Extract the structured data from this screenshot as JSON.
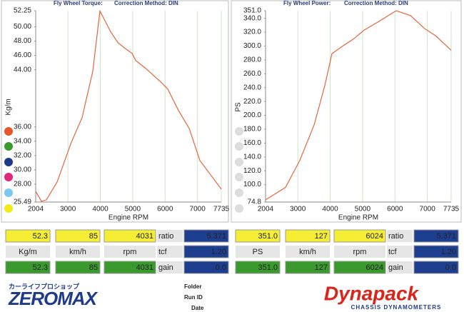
{
  "chart_data": [
    {
      "type": "line",
      "title": "Fly Wheel Torque:",
      "subtitle": "Correction Method: DIN",
      "x_label": "Engine RPM",
      "y_label": "Kg/m",
      "x": [
        2004,
        2180,
        2335,
        2665,
        3100,
        3437,
        3767,
        3988,
        4318,
        4540,
        4760,
        4980,
        5090,
        5420,
        5861,
        6082,
        6412,
        6743,
        7074,
        7405,
        7735
      ],
      "values": [
        27.0,
        25.6,
        25.8,
        28.3,
        33.8,
        37.3,
        43.8,
        52.2,
        49.3,
        47.8,
        47.0,
        46.3,
        45.3,
        44.1,
        42.3,
        41.3,
        38.3,
        35.8,
        31.3,
        29.3,
        27.3
      ],
      "color": "#e8643c",
      "xlim": [
        2004,
        7735
      ],
      "xticks": [
        2004,
        3000,
        4000,
        5000,
        6000,
        7000,
        7735
      ],
      "ylim": [
        25.49,
        52.25
      ],
      "yticks": [
        25.49,
        {
          "value": 28,
          "label": "28.00"
        },
        {
          "value": 30,
          "label": "30.00"
        },
        {
          "value": 32,
          "label": "32.00"
        },
        {
          "value": 34,
          "label": "34.00"
        },
        {
          "value": 36,
          "label": "36.00"
        },
        {
          "value": 44,
          "label": "44.00"
        },
        {
          "value": 46,
          "label": "46.00"
        },
        {
          "value": 48,
          "label": "48.00"
        },
        {
          "value": 50,
          "label": "50.00"
        },
        52.25
      ],
      "grid": true
    },
    {
      "type": "line",
      "title": "Fly Wheel Power:",
      "subtitle": "Correction Method: DIN",
      "x_label": "Engine RPM",
      "y_label": "PS",
      "x": [
        2004,
        2621,
        3062,
        3503,
        3834,
        4054,
        4385,
        4716,
        5046,
        5487,
        6038,
        6479,
        6920,
        7250,
        7735
      ],
      "values": [
        78,
        96,
        135,
        186,
        243,
        289,
        300,
        310,
        323,
        335,
        351,
        344,
        325,
        315,
        294
      ],
      "color": "#e8643c",
      "xlim": [
        2004,
        7735
      ],
      "xticks": [
        2004,
        3000,
        4000,
        5000,
        6000,
        7000,
        7735
      ],
      "ylim": [
        74.8,
        351
      ],
      "yticks": [
        74.8,
        {
          "value": 100,
          "label": "100.0"
        },
        {
          "value": 120,
          "label": "120.0"
        },
        {
          "value": 140,
          "label": "140.0"
        },
        {
          "value": 160,
          "label": "160.0"
        },
        {
          "value": 180,
          "label": "180.0"
        },
        {
          "value": 200,
          "label": "200.0"
        },
        {
          "value": 220,
          "label": "220.0"
        },
        {
          "value": 240,
          "label": "240.0"
        },
        {
          "value": 260,
          "label": "260.0"
        },
        {
          "value": 280,
          "label": "280.0"
        },
        {
          "value": 300,
          "label": "300.0"
        },
        {
          "value": 320,
          "label": "320.0"
        },
        {
          "value": 340,
          "label": "340.0"
        },
        {
          "value": 351,
          "label": "351.0"
        }
      ],
      "grid": true
    }
  ],
  "readouts": [
    {
      "peak": [
        "52.3",
        "85",
        "4031"
      ],
      "units": [
        "Kg/m",
        "km/h",
        "rpm"
      ],
      "gain_row": [
        "52.3",
        "85",
        "4031"
      ],
      "labels": [
        "ratio",
        "tcf",
        "gain"
      ],
      "settings": [
        "5.371",
        "1.20",
        "0.0"
      ]
    },
    {
      "peak": [
        "351.0",
        "127",
        "6024"
      ],
      "units": [
        "PS",
        "km/h",
        "rpm"
      ],
      "gain_row": [
        "351.0",
        "127",
        "6024"
      ],
      "labels": [
        "ratio",
        "tcf",
        "gain"
      ],
      "settings": [
        "5.371",
        "1.20",
        "0.0"
      ]
    }
  ],
  "footer": {
    "shop": "カーライフプロショップ",
    "logo": "ZEROMAX",
    "fields": [
      "Folder",
      "Run ID",
      "Date"
    ],
    "brand": "Dynapack",
    "brand_sub": "CHASSIS DYNAMOMETERS"
  }
}
